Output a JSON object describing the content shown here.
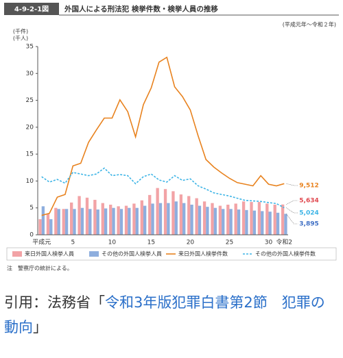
{
  "chart_data": {
    "type": "bar",
    "figure_label": "4-9-2-1図",
    "title": "外国人による刑法犯 検挙件数・検挙人員の推移",
    "subtitle": "(平成元年〜令和２年)",
    "y_units": [
      "(千件)",
      "(千人)"
    ],
    "note": "注　警察庁の統計による。",
    "categories": [
      "平成元",
      null,
      null,
      null,
      "5",
      null,
      null,
      null,
      null,
      "10",
      null,
      null,
      null,
      null,
      "15",
      null,
      null,
      null,
      null,
      "20",
      null,
      null,
      null,
      null,
      "25",
      null,
      null,
      null,
      null,
      "30",
      null,
      "令和2"
    ],
    "ylim": [
      0,
      35
    ],
    "yticks": [
      0,
      5,
      10,
      15,
      20,
      25,
      30,
      35
    ],
    "series": [
      {
        "name": "来日外国人検挙人員",
        "type": "bar",
        "color": "#f2a3a6",
        "label_color": "#e0484f",
        "values": [
          2.9,
          3.9,
          5.0,
          4.8,
          6.0,
          7.2,
          6.9,
          6.5,
          5.9,
          5.6,
          5.3,
          5.4,
          5.8,
          6.4,
          7.4,
          8.7,
          8.5,
          8.1,
          7.5,
          7.2,
          6.8,
          6.2,
          5.9,
          5.4,
          5.6,
          5.8,
          6.2,
          6.1,
          6.1,
          5.8,
          5.6,
          5.634
        ],
        "value_labels": [
          null,
          null,
          null,
          null,
          null,
          null,
          null,
          null,
          null,
          null,
          null,
          null,
          null,
          null,
          null,
          null,
          null,
          null,
          null,
          null,
          null,
          null,
          null,
          null,
          null,
          null,
          null,
          null,
          null,
          null,
          null,
          "5,634"
        ]
      },
      {
        "name": "その他の外国人検挙人員",
        "type": "bar",
        "color": "#8eaede",
        "label_color": "#3f6fc4",
        "values": [
          5.3,
          2.9,
          4.8,
          4.8,
          4.8,
          5.0,
          4.8,
          4.7,
          4.9,
          5.0,
          4.8,
          5.0,
          5.0,
          5.4,
          5.8,
          5.9,
          5.9,
          6.2,
          5.9,
          5.6,
          5.4,
          5.2,
          5.0,
          4.8,
          4.8,
          4.7,
          4.6,
          4.5,
          4.4,
          4.3,
          4.1,
          3.895
        ],
        "value_labels": [
          null,
          null,
          null,
          null,
          null,
          null,
          null,
          null,
          null,
          null,
          null,
          null,
          null,
          null,
          null,
          null,
          null,
          null,
          null,
          null,
          null,
          null,
          null,
          null,
          null,
          null,
          null,
          null,
          null,
          null,
          null,
          "3,895"
        ]
      },
      {
        "name": "来日外国人検挙件数",
        "type": "line",
        "color": "#e8821e",
        "label_color": "#e8821e",
        "values": [
          3.6,
          4.0,
          7.0,
          7.5,
          12.8,
          13.3,
          17.2,
          19.5,
          21.7,
          21.7,
          25.1,
          22.9,
          18.2,
          24.2,
          27.3,
          32.1,
          33.0,
          27.5,
          25.7,
          23.2,
          18.4,
          14.0,
          12.6,
          11.5,
          10.5,
          9.7,
          9.4,
          9.1,
          11.0,
          9.4,
          9.1,
          9.512
        ],
        "value_labels": [
          null,
          null,
          null,
          null,
          null,
          null,
          null,
          null,
          null,
          null,
          null,
          null,
          null,
          null,
          null,
          null,
          null,
          null,
          null,
          null,
          null,
          null,
          null,
          null,
          null,
          null,
          null,
          null,
          null,
          null,
          null,
          "9,512"
        ]
      },
      {
        "name": "その他の外国人検挙件数",
        "type": "line",
        "dashed": true,
        "color": "#3cb4e6",
        "label_color": "#3cb4e6",
        "values": [
          10.8,
          9.8,
          10.3,
          9.6,
          11.6,
          11.3,
          11.0,
          11.3,
          12.4,
          11.0,
          11.2,
          11.0,
          9.5,
          10.8,
          11.3,
          10.2,
          9.8,
          11.0,
          10.1,
          10.4,
          9.1,
          8.5,
          7.8,
          7.5,
          7.2,
          6.8,
          6.4,
          6.3,
          6.2,
          6.0,
          5.8,
          5.024
        ],
        "value_labels": [
          null,
          null,
          null,
          null,
          null,
          null,
          null,
          null,
          null,
          null,
          null,
          null,
          null,
          null,
          null,
          null,
          null,
          null,
          null,
          null,
          null,
          null,
          null,
          null,
          null,
          null,
          null,
          null,
          null,
          null,
          null,
          "5,024"
        ]
      }
    ]
  },
  "citation": {
    "prefix": "引用：法務省「",
    "link": "令和3年版犯罪白書第2節　犯罪の動向",
    "suffix": "」"
  }
}
